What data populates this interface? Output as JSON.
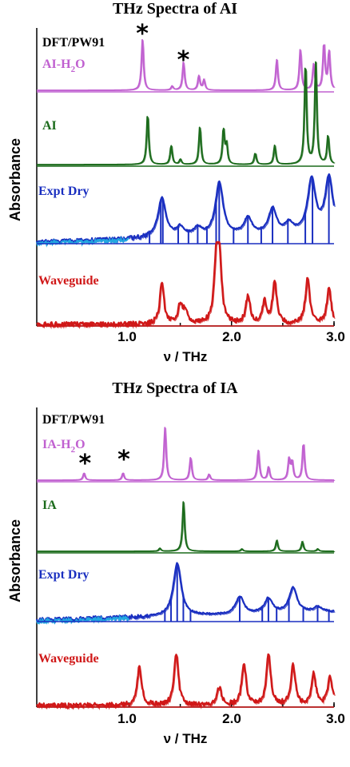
{
  "colors": {
    "dft_bg": "#c060d0",
    "ai_green": "#1a6a1a",
    "expt_blue": "#1a2fc0",
    "expt_light": "#22a8e0",
    "wave_red": "#d01818",
    "axis": "#000000"
  },
  "chart_data": [
    {
      "type": "line",
      "title": "THz Spectra of AI",
      "xlabel": "ν / THz",
      "ylabel": "Absorbance",
      "xlim": [
        0.1,
        3.0
      ],
      "xticks": [
        "1.0",
        "2.0",
        "3.0"
      ],
      "panel_labels": {
        "method": "DFT/PW91",
        "dimer_main": "AI-H",
        "dimer_sub": "2",
        "dimer_end": "O",
        "monomer": "AI",
        "expt": "Expt Dry",
        "waveguide": "Waveguide"
      },
      "asterisk": "*",
      "asterisk_positions_thz": [
        1.13,
        1.53
      ],
      "series": [
        {
          "name": "AI-H2O",
          "color": "#c060d0",
          "peaks": [
            [
              1.13,
              1.0
            ],
            [
              1.42,
              0.08
            ],
            [
              1.53,
              0.55
            ],
            [
              1.68,
              0.28
            ],
            [
              1.73,
              0.2
            ],
            [
              2.44,
              0.6
            ],
            [
              2.67,
              0.8
            ],
            [
              2.8,
              0.5
            ],
            [
              2.9,
              0.9
            ],
            [
              2.95,
              0.75
            ]
          ]
        },
        {
          "name": "AI",
          "color": "#1a6a1a",
          "peaks": [
            [
              1.18,
              0.8
            ],
            [
              1.41,
              0.3
            ],
            [
              1.5,
              0.08
            ],
            [
              1.69,
              0.6
            ],
            [
              1.92,
              0.55
            ],
            [
              1.95,
              0.3
            ],
            [
              2.23,
              0.18
            ],
            [
              2.42,
              0.3
            ],
            [
              2.72,
              1.6
            ],
            [
              2.82,
              1.6
            ],
            [
              2.94,
              0.45
            ]
          ]
        },
        {
          "name": "Expt Dry",
          "color": "#1a2fc0",
          "peaks": [
            [
              1.32,
              0.6
            ],
            [
              1.5,
              0.14
            ],
            [
              1.67,
              0.12
            ],
            [
              1.88,
              0.8
            ],
            [
              2.16,
              0.25
            ],
            [
              2.4,
              0.38
            ],
            [
              2.56,
              0.14
            ],
            [
              2.78,
              0.8
            ],
            [
              2.95,
              0.82
            ]
          ],
          "sticks": [
            1.2,
            1.31,
            1.33,
            1.48,
            1.58,
            1.67,
            1.76,
            1.85,
            1.88,
            2.02,
            2.16,
            2.29,
            2.4,
            2.55,
            2.72,
            2.79,
            2.95
          ]
        },
        {
          "name": "Waveguide",
          "color": "#d01818",
          "peaks": [
            [
              1.32,
              0.58
            ],
            [
              1.5,
              0.28
            ],
            [
              1.55,
              0.18
            ],
            [
              1.85,
              0.8
            ],
            [
              1.88,
              0.9
            ],
            [
              2.16,
              0.4
            ],
            [
              2.32,
              0.3
            ],
            [
              2.42,
              0.58
            ],
            [
              2.74,
              0.65
            ],
            [
              2.95,
              0.5
            ]
          ]
        }
      ]
    },
    {
      "type": "line",
      "title": "THz Spectra of IA",
      "xlabel": "ν / THz",
      "ylabel": "Absorbance",
      "xlim": [
        0.1,
        3.0
      ],
      "xticks": [
        "1.0",
        "2.0",
        "3.0"
      ],
      "panel_labels": {
        "method": "DFT/PW91",
        "dimer_main": "IA-H",
        "dimer_sub": "2",
        "dimer_end": "O",
        "monomer": "IA",
        "expt": "Expt Dry",
        "waveguide": "Waveguide"
      },
      "asterisk": "*",
      "asterisk_positions_thz": [
        0.57,
        0.95
      ],
      "series": [
        {
          "name": "IA-H2O",
          "color": "#c060d0",
          "peaks": [
            [
              0.56,
              0.12
            ],
            [
              0.94,
              0.12
            ],
            [
              1.35,
              0.88
            ],
            [
              1.6,
              0.38
            ],
            [
              1.78,
              0.1
            ],
            [
              2.26,
              0.5
            ],
            [
              2.36,
              0.22
            ],
            [
              2.56,
              0.35
            ],
            [
              2.59,
              0.3
            ],
            [
              2.7,
              0.62
            ]
          ]
        },
        {
          "name": "IA",
          "color": "#1a6a1a",
          "peaks": [
            [
              1.3,
              0.05
            ],
            [
              1.53,
              0.82
            ],
            [
              2.1,
              0.04
            ],
            [
              2.44,
              0.18
            ],
            [
              2.69,
              0.16
            ],
            [
              2.84,
              0.04
            ]
          ]
        },
        {
          "name": "Expt Dry",
          "color": "#1a2fc0",
          "peaks": [
            [
              1.47,
              0.9
            ],
            [
              2.08,
              0.3
            ],
            [
              2.36,
              0.25
            ],
            [
              2.6,
              0.42
            ],
            [
              2.84,
              0.08
            ]
          ],
          "sticks": [
            1.35,
            1.41,
            1.47,
            1.53,
            1.6,
            2.08,
            2.3,
            2.36,
            2.44,
            2.56,
            2.7,
            2.84,
            2.95
          ]
        },
        {
          "name": "Waveguide",
          "color": "#d01818",
          "peaks": [
            [
              1.1,
              0.55
            ],
            [
              1.46,
              0.7
            ],
            [
              1.88,
              0.25
            ],
            [
              2.12,
              0.58
            ],
            [
              2.36,
              0.68
            ],
            [
              2.6,
              0.55
            ],
            [
              2.8,
              0.45
            ],
            [
              2.96,
              0.4
            ]
          ]
        }
      ]
    }
  ]
}
